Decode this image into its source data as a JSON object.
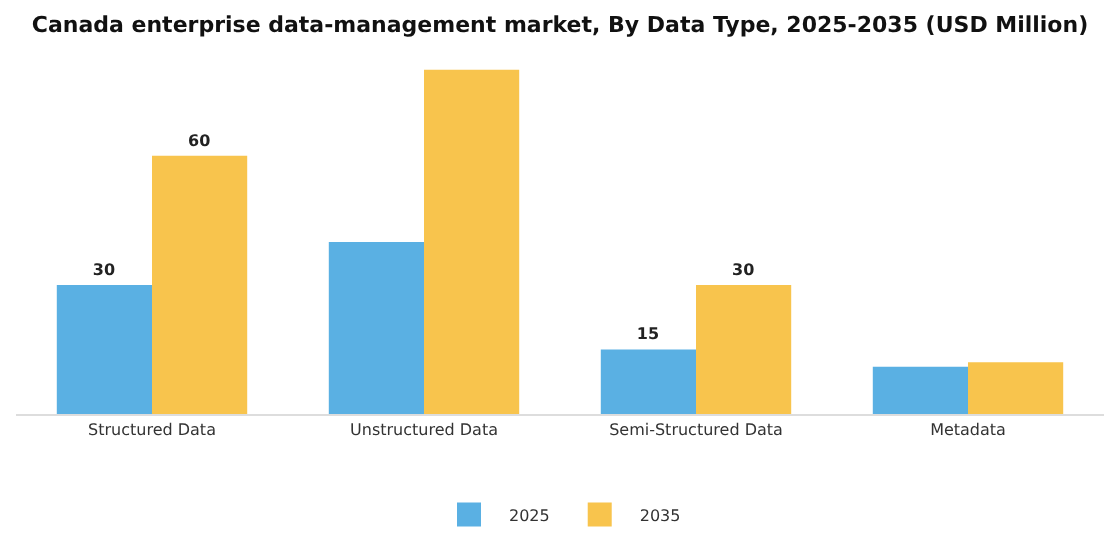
{
  "chart_data": {
    "type": "bar",
    "title": "Canada enterprise data-management market, By Data Type, 2025-2035 (USD Million)",
    "categories": [
      "Structured Data",
      "Unstructured Data",
      "Semi-Structured Data",
      "Metadata"
    ],
    "series": [
      {
        "name": "2025",
        "color": "#5ab0e3",
        "values": [
          30,
          40,
          15,
          11
        ],
        "value_labels": [
          "30",
          null,
          "15",
          null
        ]
      },
      {
        "name": "2035",
        "color": "#f8c44d",
        "values": [
          60,
          80,
          30,
          12
        ],
        "value_labels": [
          "60",
          null,
          "30",
          null
        ]
      }
    ],
    "legend": "bottom",
    "tick_labels": "x"
  }
}
